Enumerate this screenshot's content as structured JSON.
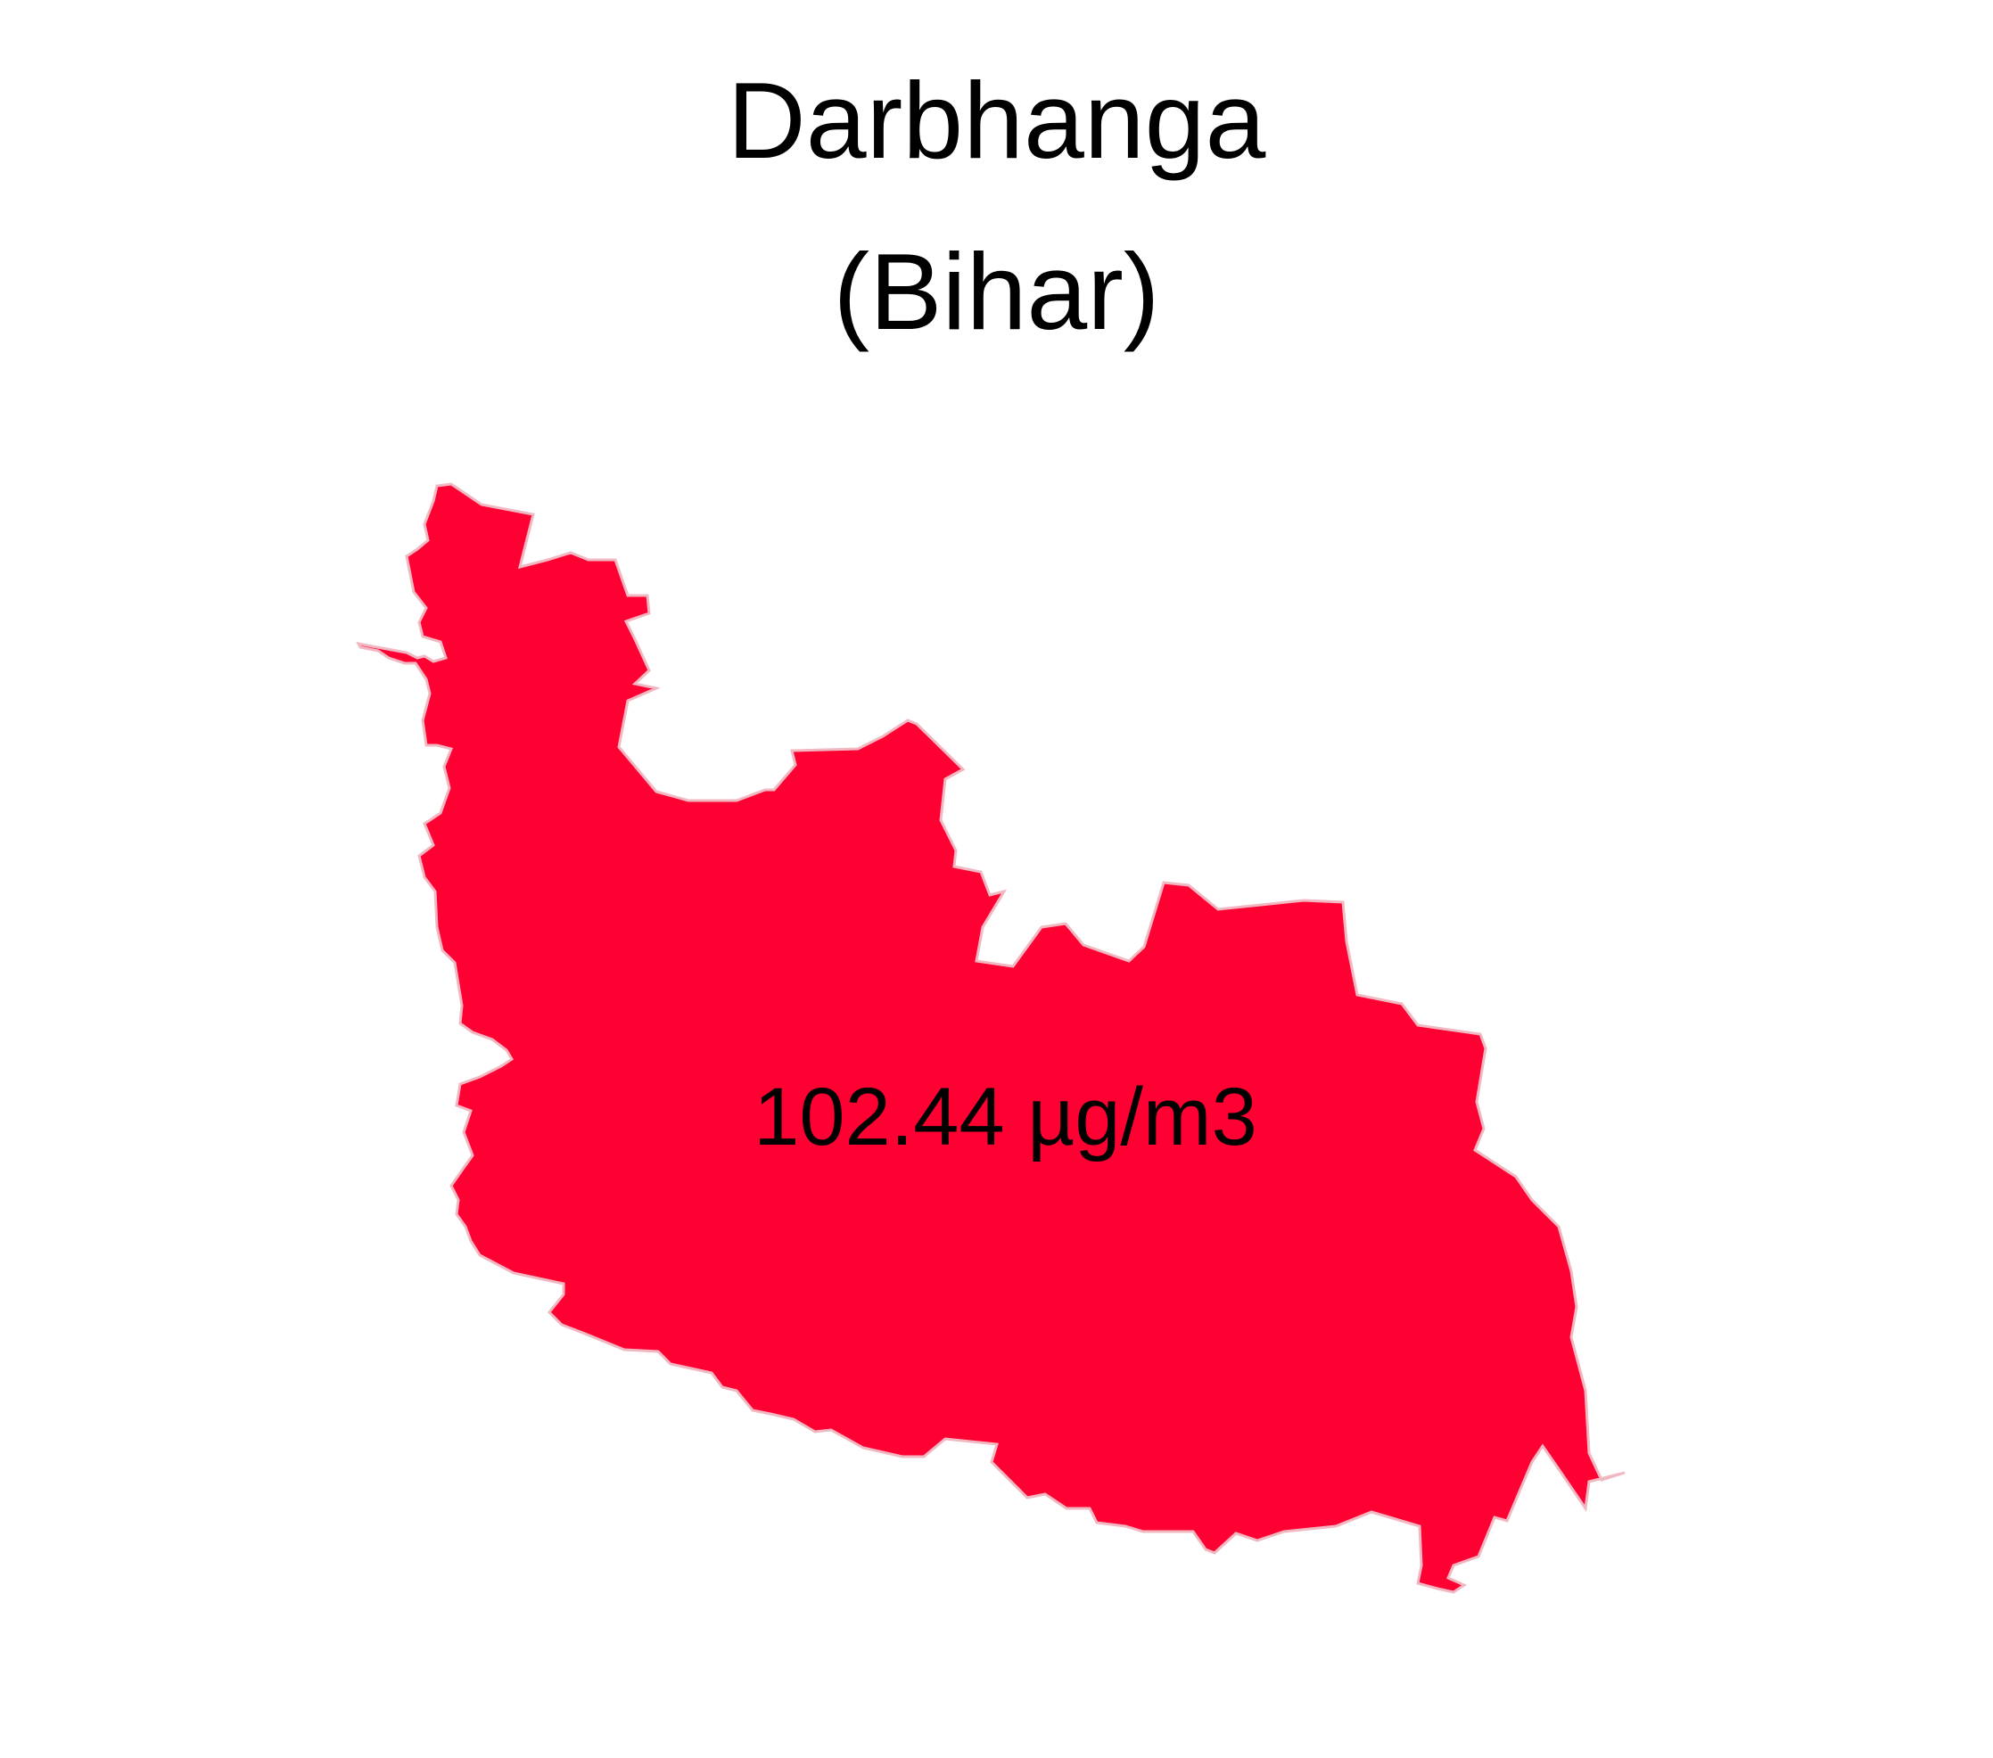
{
  "map": {
    "title": "Darbhanga",
    "subtitle": "(Bihar)",
    "region_fill": "#ff0033",
    "region_stroke": "#f2b8c2",
    "value_label": "102.44 µg/m3"
  },
  "chart_data": {
    "type": "choropleth",
    "title": "Darbhanga",
    "subtitle": "(Bihar)",
    "regions": [
      {
        "name": "Darbhanga",
        "state": "Bihar",
        "value": 102.44,
        "unit": "µg/m3",
        "color": "#ff0033"
      }
    ]
  }
}
